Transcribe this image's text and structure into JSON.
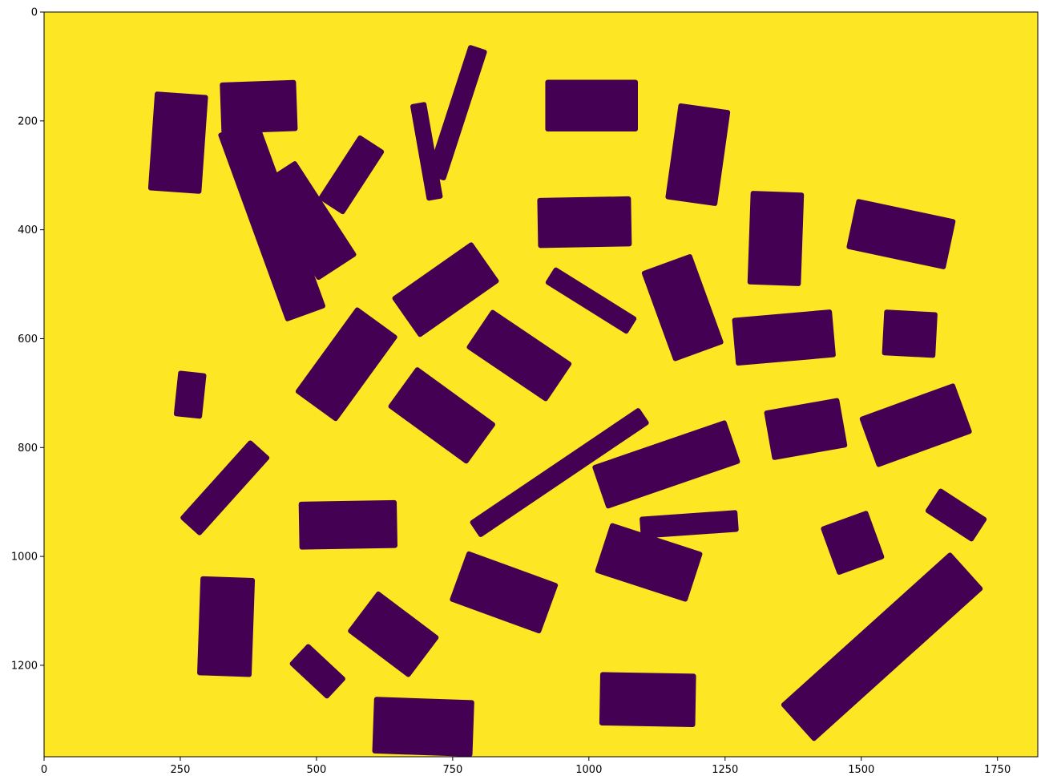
{
  "chart_data": {
    "type": "heatmap",
    "title": "",
    "xlabel": "",
    "ylabel": "",
    "xlim": [
      0,
      1824
    ],
    "ylim": [
      1368,
      0
    ],
    "xticks": [
      0,
      250,
      500,
      750,
      1000,
      1250,
      1500,
      1750
    ],
    "yticks": [
      0,
      200,
      400,
      600,
      800,
      1000,
      1200
    ],
    "background_color": "#fde725",
    "foreground_color": "#440154",
    "grid": false,
    "colormap": "viridis",
    "objects": [
      {
        "cx": 246,
        "cy": 240,
        "w": 98,
        "h": 182,
        "angle": 4
      },
      {
        "cx": 394,
        "cy": 174,
        "w": 140,
        "h": 94,
        "angle": -2
      },
      {
        "cx": 418,
        "cy": 383,
        "w": 78,
        "h": 368,
        "angle": -20
      },
      {
        "cx": 564,
        "cy": 299,
        "w": 56,
        "h": 140,
        "angle": 33
      },
      {
        "cx": 482,
        "cy": 383,
        "w": 86,
        "h": 208,
        "angle": -33
      },
      {
        "cx": 702,
        "cy": 256,
        "w": 30,
        "h": 180,
        "angle": -10
      },
      {
        "cx": 758,
        "cy": 185,
        "w": 36,
        "h": 252,
        "angle": 18
      },
      {
        "cx": 1005,
        "cy": 172,
        "w": 170,
        "h": 95,
        "angle": 0
      },
      {
        "cx": 992,
        "cy": 386,
        "w": 172,
        "h": 92,
        "angle": -1
      },
      {
        "cx": 1200,
        "cy": 262,
        "w": 96,
        "h": 178,
        "angle": 8
      },
      {
        "cx": 1343,
        "cy": 416,
        "w": 98,
        "h": 172,
        "angle": 2
      },
      {
        "cx": 1573,
        "cy": 408,
        "w": 186,
        "h": 94,
        "angle": 12
      },
      {
        "cx": 737,
        "cy": 510,
        "w": 180,
        "h": 90,
        "angle": -35
      },
      {
        "cx": 1004,
        "cy": 530,
        "w": 178,
        "h": 36,
        "angle": 32
      },
      {
        "cx": 1172,
        "cy": 543,
        "w": 98,
        "h": 176,
        "angle": -20
      },
      {
        "cx": 1358,
        "cy": 598,
        "w": 184,
        "h": 88,
        "angle": -5
      },
      {
        "cx": 1589,
        "cy": 591,
        "w": 98,
        "h": 84,
        "angle": 3
      },
      {
        "cx": 555,
        "cy": 647,
        "w": 94,
        "h": 194,
        "angle": 36
      },
      {
        "cx": 872,
        "cy": 631,
        "w": 178,
        "h": 86,
        "angle": 34
      },
      {
        "cx": 268,
        "cy": 703,
        "w": 52,
        "h": 84,
        "angle": 6
      },
      {
        "cx": 730,
        "cy": 741,
        "w": 180,
        "h": 92,
        "angle": 36
      },
      {
        "cx": 946,
        "cy": 846,
        "w": 36,
        "h": 376,
        "angle": 56
      },
      {
        "cx": 1142,
        "cy": 831,
        "w": 260,
        "h": 84,
        "angle": -19
      },
      {
        "cx": 1398,
        "cy": 766,
        "w": 140,
        "h": 92,
        "angle": -10
      },
      {
        "cx": 1600,
        "cy": 759,
        "w": 186,
        "h": 98,
        "angle": -20
      },
      {
        "cx": 332,
        "cy": 874,
        "w": 50,
        "h": 194,
        "angle": 42
      },
      {
        "cx": 558,
        "cy": 942,
        "w": 180,
        "h": 88,
        "angle": -1
      },
      {
        "cx": 1184,
        "cy": 941,
        "w": 180,
        "h": 40,
        "angle": -4
      },
      {
        "cx": 1484,
        "cy": 975,
        "w": 92,
        "h": 94,
        "angle": -20
      },
      {
        "cx": 1674,
        "cy": 924,
        "w": 104,
        "h": 52,
        "angle": 33
      },
      {
        "cx": 1110,
        "cy": 1011,
        "w": 178,
        "h": 96,
        "angle": 18
      },
      {
        "cx": 844,
        "cy": 1066,
        "w": 178,
        "h": 98,
        "angle": 20
      },
      {
        "cx": 334,
        "cy": 1129,
        "w": 100,
        "h": 182,
        "angle": 2
      },
      {
        "cx": 641,
        "cy": 1143,
        "w": 94,
        "h": 142,
        "angle": -53
      },
      {
        "cx": 502,
        "cy": 1211,
        "w": 52,
        "h": 96,
        "angle": -47
      },
      {
        "cx": 696,
        "cy": 1313,
        "w": 184,
        "h": 104,
        "angle": 2
      },
      {
        "cx": 1108,
        "cy": 1263,
        "w": 176,
        "h": 98,
        "angle": 1
      },
      {
        "cx": 1538,
        "cy": 1166,
        "w": 92,
        "h": 420,
        "angle": 48
      }
    ]
  }
}
